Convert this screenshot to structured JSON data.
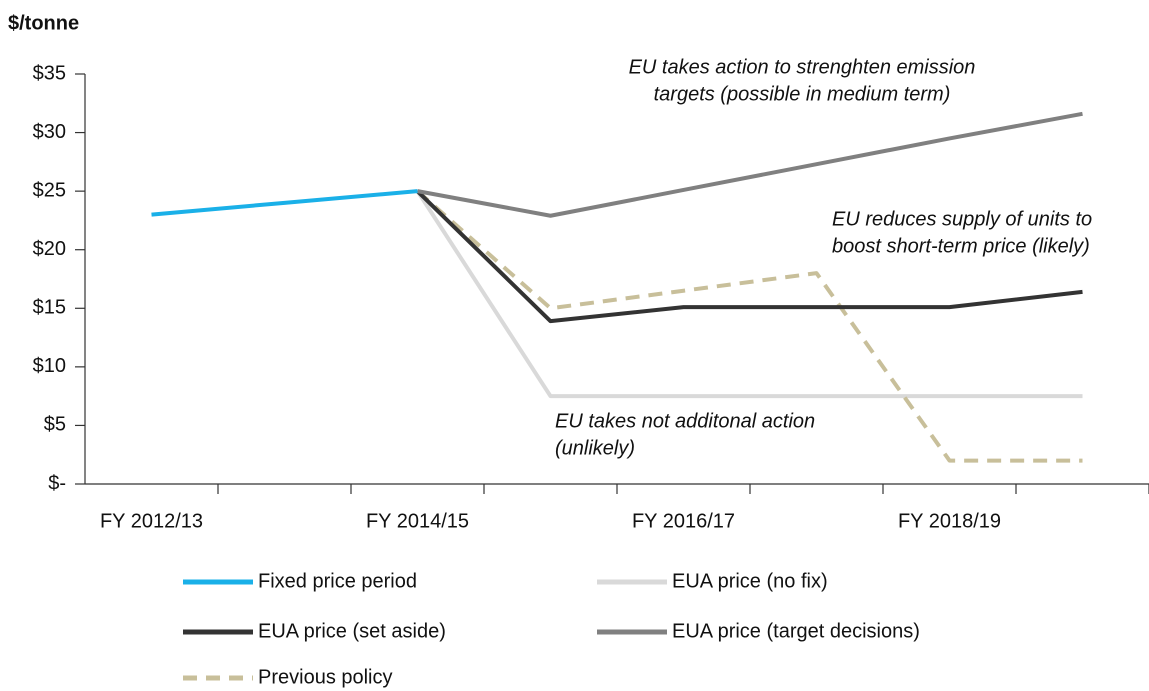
{
  "chart_data": {
    "type": "line",
    "y_label": "$/tonne",
    "categories": [
      "FY 2012/13",
      null,
      "FY 2014/15",
      null,
      "FY 2016/17",
      null,
      "FY 2018/19",
      null
    ],
    "series": [
      {
        "name": "Fixed price period",
        "color": "#1ab0e8",
        "dashed": false,
        "values": [
          23,
          24,
          25,
          null,
          null,
          null,
          null,
          null
        ]
      },
      {
        "name": "EUA price (no fix)",
        "color": "#d9d9d9",
        "dashed": false,
        "values": [
          null,
          null,
          25,
          7.5,
          7.5,
          7.5,
          7.5,
          7.5
        ]
      },
      {
        "name": "EUA price (set aside)",
        "color": "#333333",
        "dashed": false,
        "values": [
          null,
          null,
          25,
          13.9,
          15.1,
          15.1,
          15.1,
          16.4
        ]
      },
      {
        "name": "EUA price (target decisions)",
        "color": "#808080",
        "dashed": false,
        "values": [
          null,
          null,
          25,
          22.9,
          25.1,
          27.3,
          29.5,
          31.6
        ]
      },
      {
        "name": "Previous policy",
        "color": "#c8bf9a",
        "dashed": true,
        "values": [
          null,
          null,
          25,
          15,
          16.5,
          18,
          2,
          2
        ]
      }
    ],
    "ylim": [
      0,
      35
    ],
    "yticks": [
      {
        "value": 0,
        "label": "$-"
      },
      {
        "value": 5,
        "label": "$5"
      },
      {
        "value": 10,
        "label": "$10"
      },
      {
        "value": 15,
        "label": "$15"
      },
      {
        "value": 20,
        "label": "$20"
      },
      {
        "value": 25,
        "label": "$25"
      },
      {
        "value": 30,
        "label": "$30"
      },
      {
        "value": 35,
        "label": "$35"
      }
    ],
    "annotations": [
      {
        "lines": [
          "EU takes action to strenghten emission",
          "targets (possible in medium term)"
        ]
      },
      {
        "lines": [
          "EU reduces supply of units to",
          "boost short-term price (likely)"
        ]
      },
      {
        "lines": [
          "EU takes not additonal action",
          "(unlikely)"
        ]
      }
    ]
  }
}
